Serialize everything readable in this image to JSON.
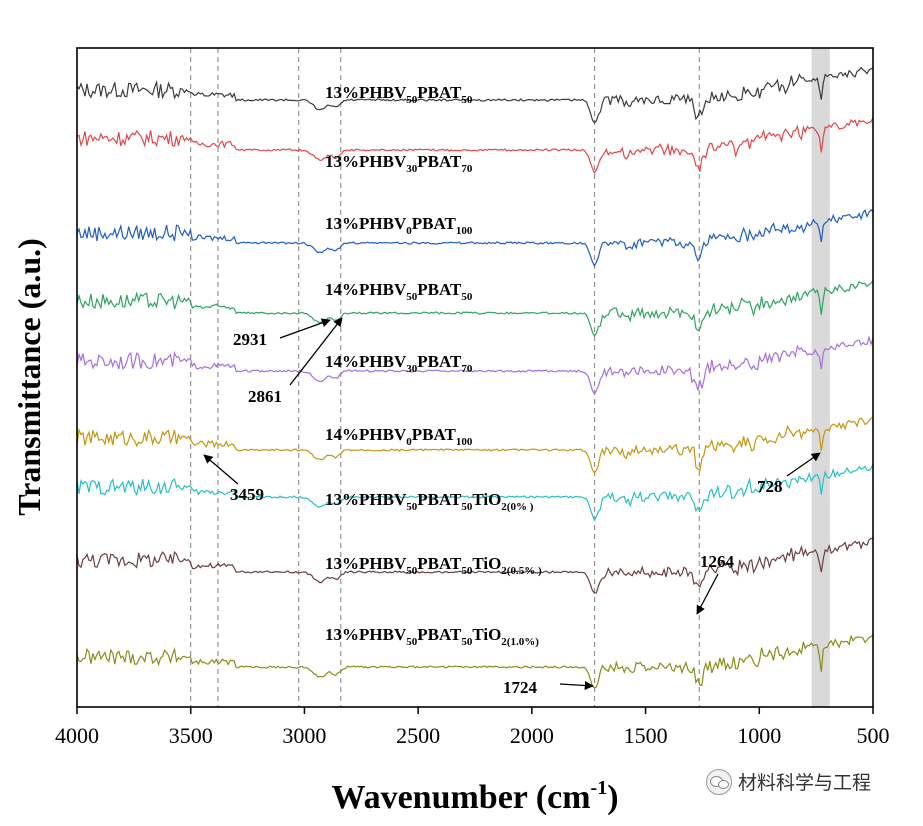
{
  "chart_data": {
    "type": "line",
    "title": "",
    "xlabel": "Wavenumber (cm",
    "xlabel_sup": "-1",
    "xlabel_close": ")",
    "ylabel": "Transmittance (a.u.)",
    "xlim": [
      4000,
      500
    ],
    "x_reversed": true,
    "x_ticks": [
      4000,
      3500,
      3000,
      2500,
      2000,
      1500,
      1000,
      500
    ],
    "x_tick_labels": [
      "4000",
      "3500",
      "3000",
      "2500",
      "2000",
      "1500",
      "1000",
      "500"
    ],
    "y_ticks_shown": false,
    "reference_lines": [
      3500,
      3380,
      3025,
      2840,
      1724,
      1264
    ],
    "highlight_band": [
      770,
      690
    ],
    "series": [
      {
        "label_parts": [
          [
            "13%PHBV",
            ""
          ],
          [
            "50",
            "sub"
          ],
          [
            "PBAT",
            ""
          ],
          [
            "50",
            "sub"
          ]
        ],
        "color": "#3c3c3c"
      },
      {
        "label_parts": [
          [
            "13%PHBV",
            ""
          ],
          [
            "30",
            "sub"
          ],
          [
            "PBAT",
            ""
          ],
          [
            "70",
            "sub"
          ]
        ],
        "color": "#e0474b"
      },
      {
        "label_parts": [
          [
            "13%PHBV",
            ""
          ],
          [
            "0",
            "sub"
          ],
          [
            "PBAT",
            ""
          ],
          [
            "100",
            "sub"
          ]
        ],
        "color": "#1f5fbf"
      },
      {
        "label_parts": [
          [
            "14%PHBV",
            ""
          ],
          [
            "50",
            "sub"
          ],
          [
            "PBAT",
            ""
          ],
          [
            "50",
            "sub"
          ]
        ],
        "color": "#2fa360"
      },
      {
        "label_parts": [
          [
            "14%PHBV",
            ""
          ],
          [
            "30",
            "sub"
          ],
          [
            "PBAT",
            ""
          ],
          [
            "70",
            "sub"
          ]
        ],
        "color": "#a86fde"
      },
      {
        "label_parts": [
          [
            "14%PHBV",
            ""
          ],
          [
            "0",
            "sub"
          ],
          [
            "PBAT",
            ""
          ],
          [
            "100",
            "sub"
          ]
        ],
        "color": "#c4960f"
      },
      {
        "label_parts": [
          [
            "13%PHBV",
            ""
          ],
          [
            "50",
            "sub"
          ],
          [
            "PBAT",
            ""
          ],
          [
            "50",
            "sub"
          ],
          [
            "TiO",
            ""
          ],
          [
            "2(0% )",
            "sub"
          ]
        ],
        "color": "#27bfc6"
      },
      {
        "label_parts": [
          [
            "13%PHBV",
            ""
          ],
          [
            "50",
            "sub"
          ],
          [
            "PBAT",
            ""
          ],
          [
            "50",
            "sub"
          ],
          [
            "TiO",
            ""
          ],
          [
            "2(0.5% )",
            "sub"
          ]
        ],
        "color": "#6b3f3f"
      },
      {
        "label_parts": [
          [
            "13%PHBV",
            ""
          ],
          [
            "50",
            "sub"
          ],
          [
            "PBAT",
            ""
          ],
          [
            "50",
            "sub"
          ],
          [
            "TiO",
            ""
          ],
          [
            "2(1.0%)",
            "sub"
          ]
        ],
        "color": "#8c8c1a"
      }
    ],
    "annotations": [
      {
        "text": "2931",
        "x": 2931
      },
      {
        "text": "2861",
        "x": 2861
      },
      {
        "text": "3459",
        "x": 3459
      },
      {
        "text": "728",
        "x": 728
      },
      {
        "text": "1264",
        "x": 1264
      },
      {
        "text": "1724",
        "x": 1724
      }
    ]
  },
  "watermark": {
    "text": "材料科学与工程"
  }
}
